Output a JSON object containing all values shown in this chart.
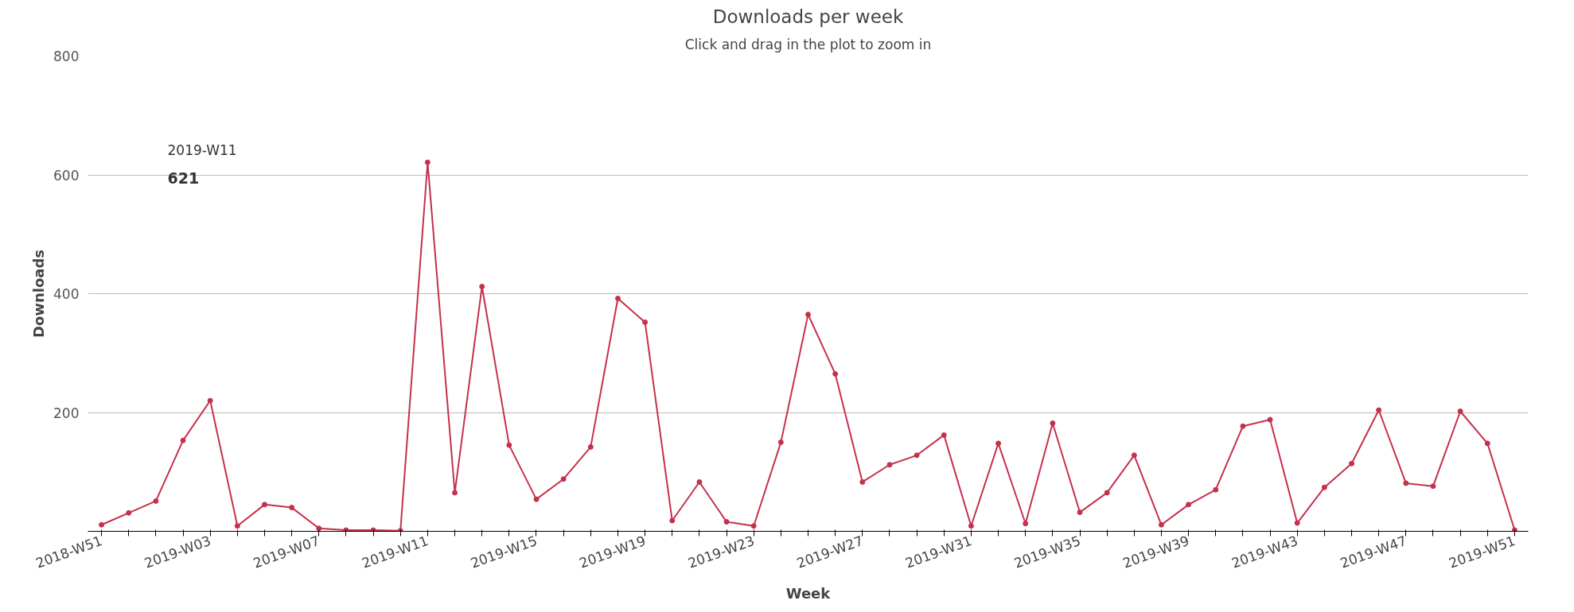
{
  "chart_data": {
    "type": "line",
    "title": "Downloads per week",
    "subtitle": "Click and drag in the plot to zoom in",
    "xlabel": "Week",
    "ylabel": "Downloads",
    "categories": [
      "2018-W51",
      null,
      null,
      null,
      "2019-W03",
      null,
      null,
      null,
      "2019-W07",
      null,
      null,
      null,
      "2019-W11",
      null,
      null,
      null,
      "2019-W15",
      null,
      null,
      null,
      "2019-W19",
      null,
      null,
      null,
      "2019-W23",
      null,
      null,
      null,
      "2019-W27",
      null,
      null,
      null,
      "2019-W31",
      null,
      null,
      null,
      "2019-W35",
      null,
      null,
      null,
      "2019-W39",
      null,
      null,
      null,
      "2019-W43",
      null,
      null,
      null,
      "2019-W47",
      null,
      null,
      null,
      "2019-W51"
    ],
    "series": [
      {
        "color": "#c4314b",
        "values": [
          11,
          31,
          51,
          153,
          220,
          9,
          45,
          40,
          5,
          2,
          2,
          1,
          621,
          65,
          412,
          145,
          54,
          88,
          142,
          392,
          352,
          18,
          83,
          16,
          9,
          150,
          365,
          265,
          83,
          112,
          128,
          162,
          9,
          148,
          13,
          182,
          32,
          65,
          128,
          11,
          45,
          70,
          177,
          188,
          14,
          74,
          114,
          204,
          81,
          76,
          202,
          148,
          2
        ]
      }
    ],
    "ylim": [
      0,
      800
    ],
    "yticks": [
      200,
      400,
      600,
      800
    ],
    "grid": "y",
    "marker": "circle",
    "line_style": "solid",
    "annotations": [
      "2019-W11",
      "621"
    ]
  }
}
